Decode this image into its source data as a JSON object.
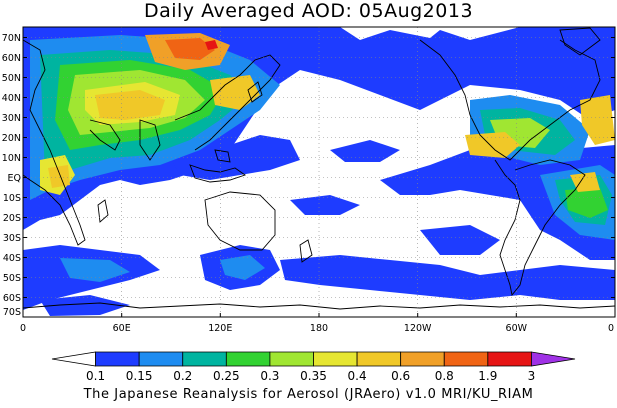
{
  "map": {
    "title": "Daily Averaged AOD: 05Aug2013",
    "footer": "The Japanese Reanalysis for Aerosol (JRAero) v1.0 MRI/KU_RIAM",
    "lat_labels": [
      "70N",
      "60N",
      "50N",
      "40N",
      "30N",
      "20N",
      "10N",
      "EQ",
      "10S",
      "20S",
      "30S",
      "40S",
      "50S",
      "60S",
      "70S"
    ],
    "lon_labels": [
      "0",
      "60E",
      "120E",
      "180",
      "120W",
      "60W",
      "0"
    ],
    "colorbar": {
      "labels": [
        "0.1",
        "0.15",
        "0.2",
        "0.25",
        "0.3",
        "0.35",
        "0.4",
        "0.6",
        "0.8",
        "1.9",
        "3"
      ],
      "colors": [
        "#ffffff",
        "#1e3cff",
        "#1e8cf0",
        "#00b4a0",
        "#32d232",
        "#a0e632",
        "#e6e632",
        "#f0c828",
        "#f0a028",
        "#f06414",
        "#e61414",
        "#a032e6"
      ]
    }
  }
}
